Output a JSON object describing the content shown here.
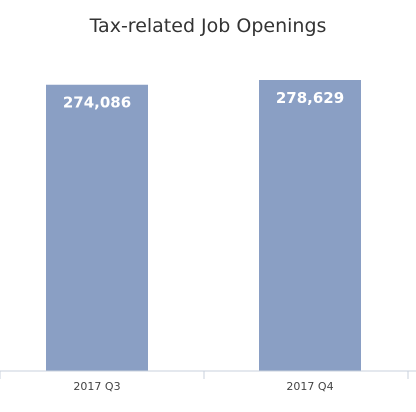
{
  "chart_data": {
    "type": "bar",
    "title": "Tax-related Job Openings",
    "categories": [
      "2017 Q3",
      "2017 Q4"
    ],
    "values": [
      274086,
      278629
    ],
    "value_labels": [
      "274,086",
      "278,629"
    ],
    "xlabel": "",
    "ylabel": "",
    "ylim": [
      0,
      278629
    ],
    "grid": false,
    "colors": {
      "bar": "#8a9fc4",
      "value_label": "#ffffff",
      "title": "#333333",
      "axis": "#c8d0dc",
      "tick_label": "#444444"
    }
  }
}
